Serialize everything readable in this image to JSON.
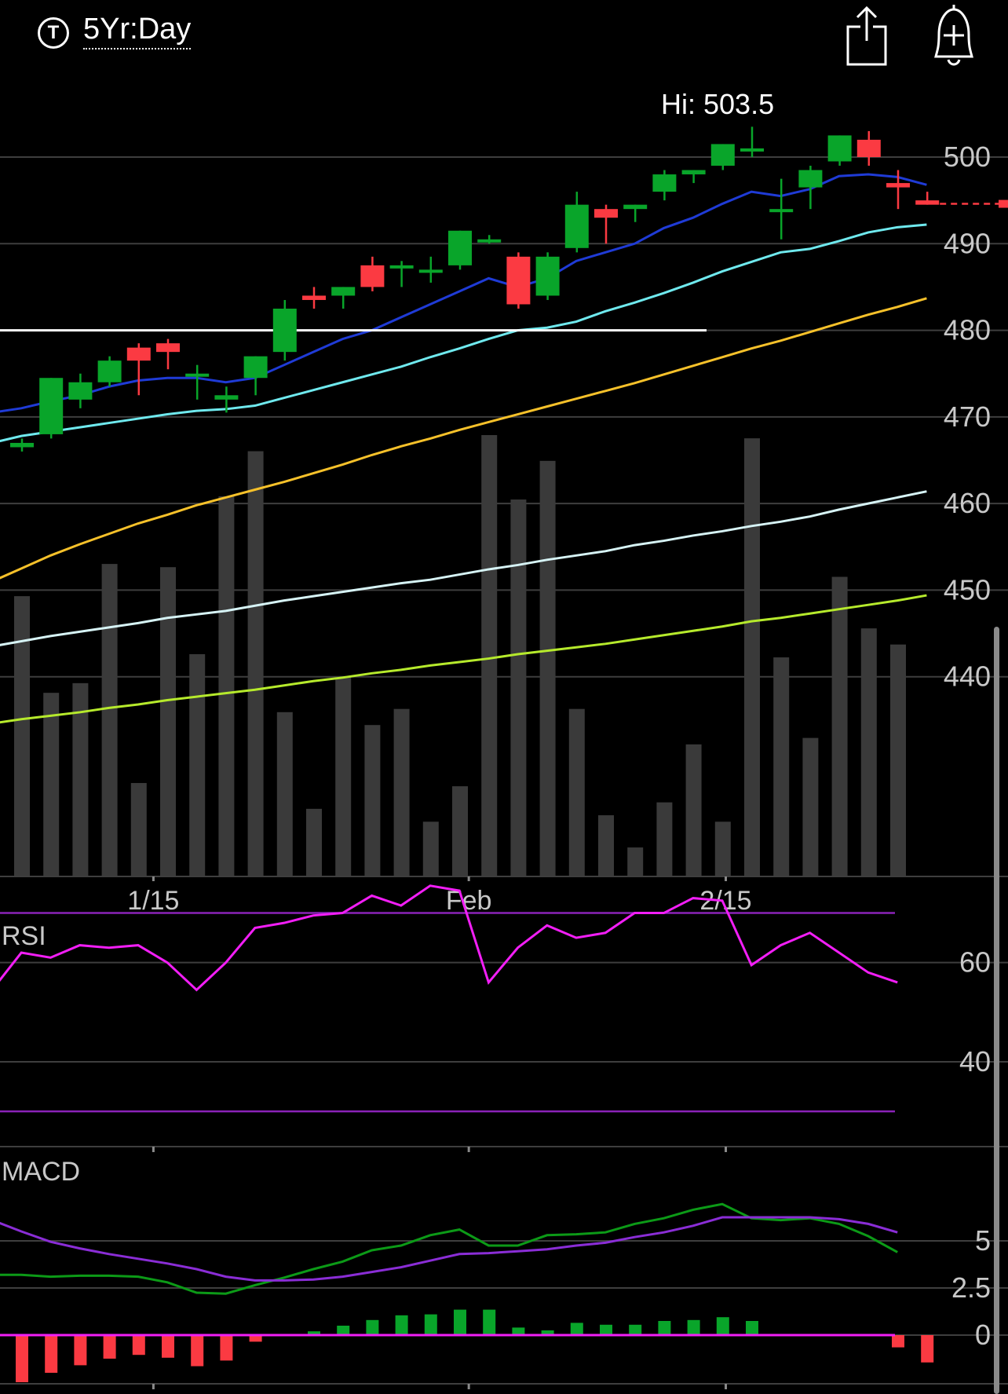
{
  "header": {
    "period_icon_glyph": "T",
    "period_label": "5Yr:Day",
    "share_icon": "share-icon",
    "alert_icon": "add-alert-bell-icon"
  },
  "hi_label": "Hi: 503.5",
  "colors": {
    "up": "#09a52a",
    "down": "#fb3a42",
    "volume": "#3a3a3a",
    "ema_fast": "#1f3bd6",
    "ema_slow": "#6fe9ee",
    "sma50": "#f6c12a",
    "sma100": "#d6f3f5",
    "sma200": "#b6ea2c",
    "rsi": "#f21ef6",
    "rsi_bands": "#8a22b8",
    "macd": "#0c9a17",
    "signal": "#8a2dd6",
    "hist_up": "#09a52a",
    "hist_down": "#fb3a42",
    "zero_line": "#f21ef6",
    "reference_line": "#ffffff",
    "last_price_line": "#fb3a42"
  },
  "chart_data": [
    {
      "type": "candlestick",
      "y_ticks": [
        "500",
        "490",
        "480",
        "470",
        "460",
        "450",
        "440"
      ],
      "ylim": [
        428.5,
        506
      ],
      "x_ticks": [
        "1/15",
        "Feb",
        "2/15"
      ],
      "reference_line": 480,
      "last_price": 494.6,
      "candles": [
        {
          "o": 466.5,
          "h": 467.5,
          "l": 466.0,
          "c": 467.0
        },
        {
          "o": 468.0,
          "h": 474.5,
          "l": 467.5,
          "c": 474.5
        },
        {
          "o": 472.0,
          "h": 475.0,
          "l": 471.0,
          "c": 474.0
        },
        {
          "o": 474.0,
          "h": 477.0,
          "l": 473.5,
          "c": 476.5
        },
        {
          "o": 478.0,
          "h": 478.5,
          "l": 472.5,
          "c": 476.5
        },
        {
          "o": 478.5,
          "h": 479.0,
          "l": 475.5,
          "c": 477.5
        },
        {
          "o": 475.0,
          "h": 476.0,
          "l": 472.0,
          "c": 475.0
        },
        {
          "o": 472.0,
          "h": 473.5,
          "l": 470.5,
          "c": 472.5
        },
        {
          "o": 474.5,
          "h": 477.0,
          "l": 472.5,
          "c": 477.0
        },
        {
          "o": 477.5,
          "h": 483.5,
          "l": 476.5,
          "c": 482.5
        },
        {
          "o": 484.0,
          "h": 485.0,
          "l": 482.5,
          "c": 483.5
        },
        {
          "o": 484.0,
          "h": 485.0,
          "l": 482.5,
          "c": 485.0
        },
        {
          "o": 487.5,
          "h": 488.5,
          "l": 484.5,
          "c": 485.0
        },
        {
          "o": 487.5,
          "h": 488.0,
          "l": 485.0,
          "c": 487.5
        },
        {
          "o": 487.0,
          "h": 488.5,
          "l": 485.5,
          "c": 487.0
        },
        {
          "o": 487.5,
          "h": 491.5,
          "l": 487.0,
          "c": 491.5
        },
        {
          "o": 490.5,
          "h": 491.0,
          "l": 490.0,
          "c": 490.5
        },
        {
          "o": 488.5,
          "h": 489.0,
          "l": 482.5,
          "c": 483.0
        },
        {
          "o": 484.0,
          "h": 489.0,
          "l": 483.5,
          "c": 488.5
        },
        {
          "o": 489.5,
          "h": 496.0,
          "l": 489.0,
          "c": 494.5
        },
        {
          "o": 494.0,
          "h": 494.5,
          "l": 490.0,
          "c": 493.0
        },
        {
          "o": 494.0,
          "h": 494.5,
          "l": 492.5,
          "c": 494.5
        },
        {
          "o": 496.0,
          "h": 498.5,
          "l": 495.0,
          "c": 498.0
        },
        {
          "o": 498.0,
          "h": 498.5,
          "l": 497.0,
          "c": 498.5
        },
        {
          "o": 499.0,
          "h": 501.5,
          "l": 498.5,
          "c": 501.5
        },
        {
          "o": 501.0,
          "h": 503.5,
          "l": 500.0,
          "c": 501.0
        },
        {
          "o": 494.0,
          "h": 497.5,
          "l": 490.5,
          "c": 494.0
        },
        {
          "o": 496.5,
          "h": 499.0,
          "l": 494.0,
          "c": 498.5
        },
        {
          "o": 499.5,
          "h": 502.5,
          "l": 499.0,
          "c": 502.5
        },
        {
          "o": 502.0,
          "h": 503.0,
          "l": 499.0,
          "c": 500.0
        },
        {
          "o": 497.0,
          "h": 498.5,
          "l": 494.0,
          "c": 496.5
        },
        {
          "o": 495.0,
          "h": 496.0,
          "l": 494.5,
          "c": 494.5
        }
      ],
      "volume_bars": [
        450,
        420,
        423,
        460,
        392,
        459,
        432,
        481,
        495,
        414,
        384,
        425,
        410,
        415,
        380,
        391,
        500,
        480,
        492,
        415,
        382,
        372,
        386,
        404,
        380,
        499,
        431,
        406,
        456,
        440,
        435,
        362
      ],
      "series": [
        {
          "name": "",
          "color_key": "ema_fast",
          "values": [
            470.5,
            471.0,
            471.8,
            472.5,
            473.5,
            474.2,
            474.5,
            474.5,
            474.0,
            474.5,
            476.0,
            477.5,
            479.0,
            480.0,
            481.5,
            483.0,
            484.5,
            486.0,
            485.0,
            486.0,
            488.0,
            489.0,
            490.0,
            491.8,
            493.0,
            494.6,
            496.0,
            495.5,
            496.3,
            497.8,
            498.0,
            497.7,
            496.8
          ]
        },
        {
          "name": "",
          "color_key": "ema_slow",
          "values": [
            467.0,
            467.8,
            468.3,
            468.8,
            469.3,
            469.8,
            470.3,
            470.7,
            470.9,
            471.3,
            472.2,
            473.1,
            474.0,
            474.9,
            475.8,
            476.9,
            477.9,
            479.0,
            480.0,
            480.3,
            481.0,
            482.2,
            483.2,
            484.3,
            485.5,
            486.8,
            487.9,
            489.0,
            489.4,
            490.3,
            491.3,
            491.9,
            492.2
          ]
        },
        {
          "name": "",
          "color_key": "sma50",
          "values": [
            451.0,
            452.5,
            454.0,
            455.3,
            456.5,
            457.7,
            458.7,
            459.8,
            460.7,
            461.6,
            462.5,
            463.5,
            464.5,
            465.6,
            466.6,
            467.5,
            468.5,
            469.4,
            470.3,
            471.2,
            472.1,
            473.0,
            473.9,
            474.9,
            475.9,
            476.9,
            477.9,
            478.8,
            479.8,
            480.8,
            481.8,
            482.7,
            483.7
          ]
        },
        {
          "name": "",
          "color_key": "sma100",
          "values": [
            443.5,
            444.1,
            444.7,
            445.2,
            445.7,
            446.2,
            446.8,
            447.2,
            447.6,
            448.2,
            448.8,
            449.3,
            449.8,
            450.3,
            450.8,
            451.2,
            451.8,
            452.4,
            452.9,
            453.5,
            454.0,
            454.5,
            455.2,
            455.7,
            456.3,
            456.8,
            457.4,
            457.9,
            458.5,
            459.3,
            460.0,
            460.7,
            461.4
          ]
        },
        {
          "name": "",
          "color_key": "sma200",
          "values": [
            434.6,
            435.1,
            435.5,
            435.9,
            436.4,
            436.8,
            437.3,
            437.7,
            438.1,
            438.5,
            439.0,
            439.5,
            439.9,
            440.4,
            440.8,
            441.3,
            441.7,
            442.1,
            442.6,
            443.0,
            443.4,
            443.8,
            444.3,
            444.8,
            445.3,
            445.8,
            446.4,
            446.8,
            447.3,
            447.8,
            448.3,
            448.8,
            449.4
          ]
        }
      ]
    },
    {
      "type": "line",
      "label": "RSI",
      "y_ticks": [
        "60",
        "40"
      ],
      "ylim": [
        21,
        78
      ],
      "bands": [
        70,
        30
      ],
      "values": [
        54.5,
        62,
        61,
        63.5,
        63,
        63.5,
        60,
        54.5,
        60,
        67,
        68,
        69.5,
        70,
        73.5,
        71.5,
        75.5,
        74.5,
        56,
        63,
        67.5,
        65,
        66,
        70,
        70,
        73,
        72.5,
        59.5,
        63.5,
        66,
        62,
        58,
        56
      ]
    },
    {
      "type": "line",
      "label": "MACD",
      "y_ticks": [
        "5",
        "2.5",
        "0"
      ],
      "ylim": [
        -2.5,
        7.7
      ],
      "series": [
        {
          "name": "",
          "color_key": "macd",
          "values": [
            3.2,
            3.2,
            3.1,
            3.15,
            3.15,
            3.1,
            2.8,
            2.25,
            2.2,
            2.65,
            3.05,
            3.5,
            3.9,
            4.5,
            4.75,
            5.3,
            5.6,
            4.75,
            4.75,
            5.3,
            5.35,
            5.45,
            5.9,
            6.2,
            6.65,
            6.95,
            6.2,
            6.1,
            6.2,
            5.9,
            5.25,
            4.4
          ]
        },
        {
          "name": "",
          "color_key": "signal",
          "values": [
            6.1,
            5.5,
            4.95,
            4.6,
            4.3,
            4.05,
            3.8,
            3.5,
            3.1,
            2.9,
            2.9,
            2.95,
            3.1,
            3.35,
            3.6,
            3.95,
            4.3,
            4.35,
            4.45,
            4.55,
            4.75,
            4.9,
            5.2,
            5.45,
            5.8,
            6.25,
            6.25,
            6.25,
            6.25,
            6.15,
            5.9,
            5.45
          ]
        }
      ],
      "histogram": [
        -2.5,
        -2.0,
        -1.6,
        -1.25,
        -1.05,
        -1.2,
        -1.65,
        -1.35,
        -0.35,
        0.0,
        0.2,
        0.5,
        0.8,
        1.05,
        1.1,
        1.35,
        1.35,
        0.4,
        0.25,
        0.65,
        0.55,
        0.55,
        0.75,
        0.8,
        0.95,
        0.75,
        0.05,
        0.0,
        0.05,
        0.0,
        -0.65,
        -1.45
      ]
    }
  ]
}
